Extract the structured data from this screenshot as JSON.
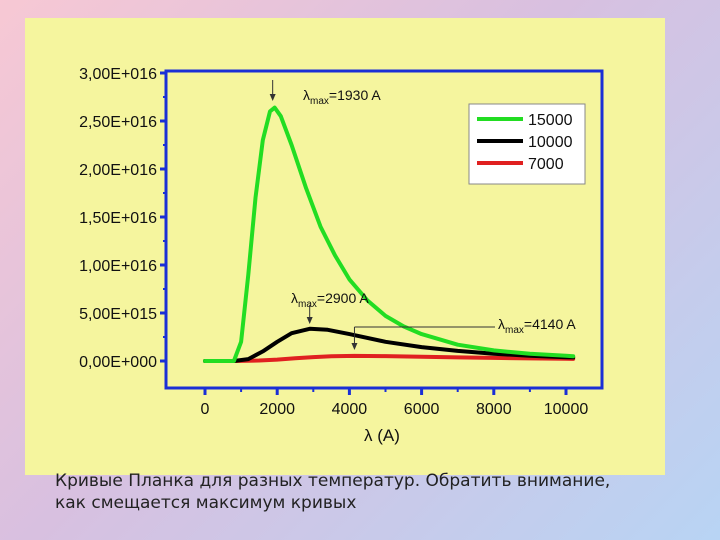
{
  "slide": {
    "caption_line1": "Кривые Планка для разных температур. Обратить внимание,",
    "caption_line2": "как смещается максимум кривых"
  },
  "colors": {
    "panel_bg": "#f5f59e",
    "axis": "#1a2fd6",
    "series_15000": "#22dd22",
    "series_10000": "#000000",
    "series_7000": "#e02020"
  },
  "chart_data": {
    "type": "line",
    "xlabel": "λ (A)",
    "ylabel": "",
    "xlim": [
      -1000,
      11000
    ],
    "ylim": [
      0,
      3e+16
    ],
    "x_ticks": [
      0,
      2000,
      4000,
      6000,
      8000,
      10000
    ],
    "x_tick_labels": [
      "0",
      "2000",
      "4000",
      "6000",
      "8000",
      "10000"
    ],
    "y_ticks": [
      0,
      5000000000000000.0,
      1e+16,
      1.5e+16,
      2e+16,
      2.5e+16,
      3e+16
    ],
    "y_tick_labels": [
      "0,00E+000",
      "5,00E+015",
      "1,00E+016",
      "1,50E+016",
      "2,00E+016",
      "2,50E+016",
      "3,00E+016"
    ],
    "legend_position": "top-right",
    "series": [
      {
        "name": "15000",
        "color": "#22dd22",
        "x": [
          0,
          800,
          1000,
          1200,
          1400,
          1600,
          1800,
          1930,
          2100,
          2400,
          2800,
          3200,
          3600,
          4000,
          4500,
          5000,
          5500,
          6000,
          7000,
          8000,
          9000,
          10000,
          10200
        ],
        "y": [
          0,
          0,
          2000000000000000.0,
          9000000000000000.0,
          1.7e+16,
          2.3e+16,
          2.6e+16,
          2.64e+16,
          2.55e+16,
          2.25e+16,
          1.8e+16,
          1.4e+16,
          1.1e+16,
          8500000000000000.0,
          6300000000000000.0,
          4700000000000000.0,
          3600000000000000.0,
          2800000000000000.0,
          1700000000000000.0,
          1100000000000000.0,
          750000000000000.0,
          550000000000000.0,
          500000000000000.0
        ]
      },
      {
        "name": "10000",
        "color": "#000000",
        "x": [
          0,
          800,
          1200,
          1600,
          2000,
          2400,
          2900,
          3400,
          4000,
          5000,
          6000,
          7000,
          8000,
          9000,
          10000,
          10200
        ],
        "y": [
          0,
          0,
          200000000000000.0,
          1000000000000000.0,
          2000000000000000.0,
          2900000000000000.0,
          3350000000000000.0,
          3250000000000000.0,
          2800000000000000.0,
          2000000000000000.0,
          1450000000000000.0,
          1050000000000000.0,
          750000000000000.0,
          550000000000000.0,
          400000000000000.0,
          380000000000000.0
        ]
      },
      {
        "name": "7000",
        "color": "#e02020",
        "x": [
          0,
          800,
          1500,
          2000,
          2500,
          3000,
          3500,
          4140,
          5000,
          6000,
          7000,
          8000,
          9000,
          10000,
          10200
        ],
        "y": [
          0,
          0,
          50000000000000.0,
          150000000000000.0,
          290000000000000.0,
          410000000000000.0,
          490000000000000.0,
          530000000000000.0,
          510000000000000.0,
          450000000000000.0,
          380000000000000.0,
          320000000000000.0,
          270000000000000.0,
          230000000000000.0,
          220000000000000.0
        ]
      }
    ],
    "annotations": [
      {
        "prefix": "λ",
        "sub": "max",
        "text": "=1930 A",
        "x": 1930,
        "y": 2.64e+16
      },
      {
        "prefix": "λ",
        "sub": "max",
        "text": "=2900 A",
        "x": 2900,
        "y": 3350000000000000.0
      },
      {
        "prefix": "λ",
        "sub": "max",
        "text": "=4140 A",
        "x": 4140,
        "y": 530000000000000.0
      }
    ]
  }
}
